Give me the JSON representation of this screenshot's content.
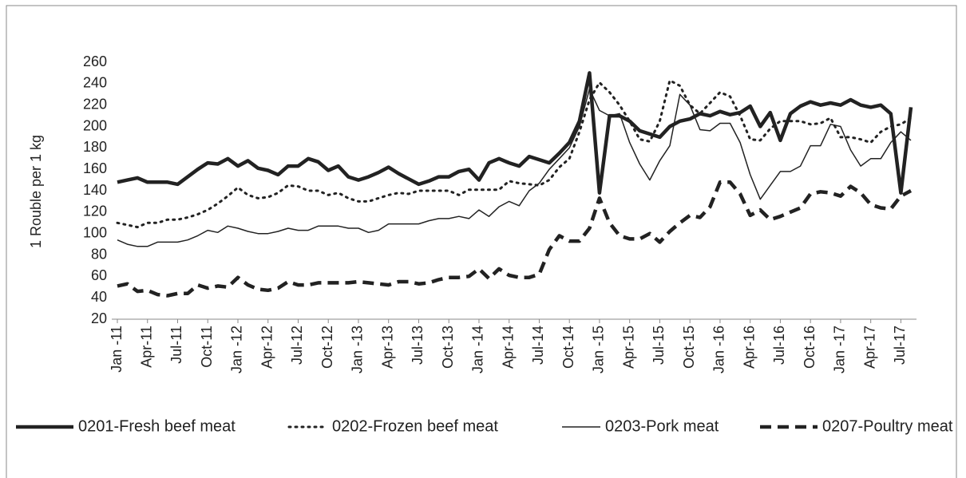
{
  "chart_data": {
    "type": "line",
    "y_label": "1 Rouble per 1 kg",
    "categories": [
      "Jan -11",
      null,
      null,
      "Apr-11",
      null,
      null,
      "Jul-11",
      null,
      null,
      "Oct-11",
      null,
      null,
      "Jan -12",
      null,
      null,
      "Apr-12",
      null,
      null,
      "Jul-12",
      null,
      null,
      "Oct-12",
      null,
      null,
      "Jan -13",
      null,
      null,
      "Apr-13",
      null,
      null,
      "Jul-13",
      null,
      null,
      "Oct-13",
      null,
      null,
      "Jan -14",
      null,
      null,
      "Apr-14",
      null,
      null,
      "Jul-14",
      null,
      null,
      "Oct-14",
      null,
      null,
      "Jan -15",
      null,
      null,
      "Apr-15",
      null,
      null,
      "Jul-15",
      null,
      null,
      "Oct-15",
      null,
      null,
      "Jan -16",
      null,
      null,
      "Apr-16",
      null,
      null,
      "Jul-16",
      null,
      null,
      "Oct-16",
      null,
      null,
      "Jan -17",
      null,
      null,
      "Apr-17",
      null,
      null,
      "Jul-17",
      null
    ],
    "ylim": [
      20,
      260
    ],
    "yticks": [
      20,
      40,
      60,
      80,
      100,
      120,
      140,
      160,
      180,
      200,
      220,
      240,
      260
    ],
    "grid": false,
    "legend": "bottom",
    "series": [
      {
        "name": "0201-Fresh beef meat",
        "color": "#222222",
        "style": "solid",
        "width": 4.5,
        "values": [
          148,
          150,
          152,
          148,
          148,
          148,
          146,
          153,
          160,
          166,
          165,
          170,
          163,
          168,
          161,
          159,
          155,
          163,
          163,
          170,
          167,
          159,
          163,
          153,
          150,
          153,
          157,
          162,
          156,
          151,
          146,
          149,
          153,
          153,
          158,
          160,
          150,
          166,
          170,
          166,
          163,
          172,
          169,
          166,
          175,
          185,
          205,
          250,
          138,
          210,
          210,
          205,
          196,
          193,
          190,
          200,
          205,
          207,
          212,
          210,
          214,
          211,
          213,
          219,
          200,
          213,
          187,
          212,
          219,
          223,
          220,
          222,
          220,
          225,
          220,
          218,
          220,
          212,
          138,
          218
        ]
      },
      {
        "name": "0202-Frozen beef meat",
        "color": "#222222",
        "style": "dotted",
        "width": 3,
        "values": [
          110,
          108,
          106,
          110,
          110,
          113,
          113,
          115,
          118,
          122,
          128,
          135,
          143,
          136,
          133,
          134,
          138,
          145,
          144,
          140,
          140,
          136,
          138,
          133,
          130,
          130,
          133,
          136,
          138,
          137,
          140,
          140,
          140,
          140,
          136,
          141,
          141,
          141,
          141,
          149,
          147,
          146,
          145,
          150,
          162,
          170,
          195,
          225,
          241,
          232,
          220,
          205,
          188,
          186,
          205,
          243,
          238,
          220,
          212,
          222,
          232,
          228,
          210,
          188,
          187,
          198,
          205,
          205,
          205,
          202,
          203,
          208,
          190,
          190,
          188,
          185,
          195,
          200,
          202,
          208
        ]
      },
      {
        "name": "0203-Pork meat",
        "color": "#222222",
        "style": "solid",
        "width": 1.5,
        "values": [
          94,
          90,
          88,
          88,
          92,
          92,
          92,
          94,
          98,
          103,
          101,
          107,
          105,
          102,
          100,
          100,
          102,
          105,
          103,
          103,
          107,
          107,
          107,
          105,
          105,
          101,
          103,
          109,
          109,
          109,
          109,
          112,
          114,
          114,
          116,
          114,
          122,
          116,
          125,
          130,
          126,
          140,
          147,
          160,
          170,
          180,
          200,
          235,
          215,
          210,
          212,
          185,
          165,
          150,
          168,
          182,
          230,
          220,
          197,
          196,
          203,
          203,
          185,
          155,
          132,
          145,
          158,
          158,
          163,
          182,
          182,
          202,
          200,
          178,
          163,
          170,
          170,
          185,
          195,
          187
        ]
      },
      {
        "name": "0207-Poultry meat",
        "color": "#222222",
        "style": "dashed",
        "width": 4.5,
        "values": [
          51,
          53,
          46,
          47,
          43,
          42,
          44,
          44,
          52,
          49,
          51,
          50,
          59,
          52,
          48,
          47,
          49,
          55,
          52,
          52,
          54,
          54,
          54,
          54,
          55,
          54,
          53,
          52,
          55,
          55,
          53,
          54,
          57,
          59,
          59,
          60,
          67,
          58,
          67,
          61,
          59,
          59,
          62,
          85,
          98,
          93,
          93,
          105,
          133,
          110,
          98,
          95,
          95,
          100,
          92,
          102,
          110,
          117,
          115,
          125,
          148,
          148,
          137,
          117,
          122,
          113,
          116,
          120,
          124,
          137,
          139,
          138,
          135,
          144,
          138,
          127,
          124,
          123,
          135,
          140
        ]
      }
    ]
  }
}
